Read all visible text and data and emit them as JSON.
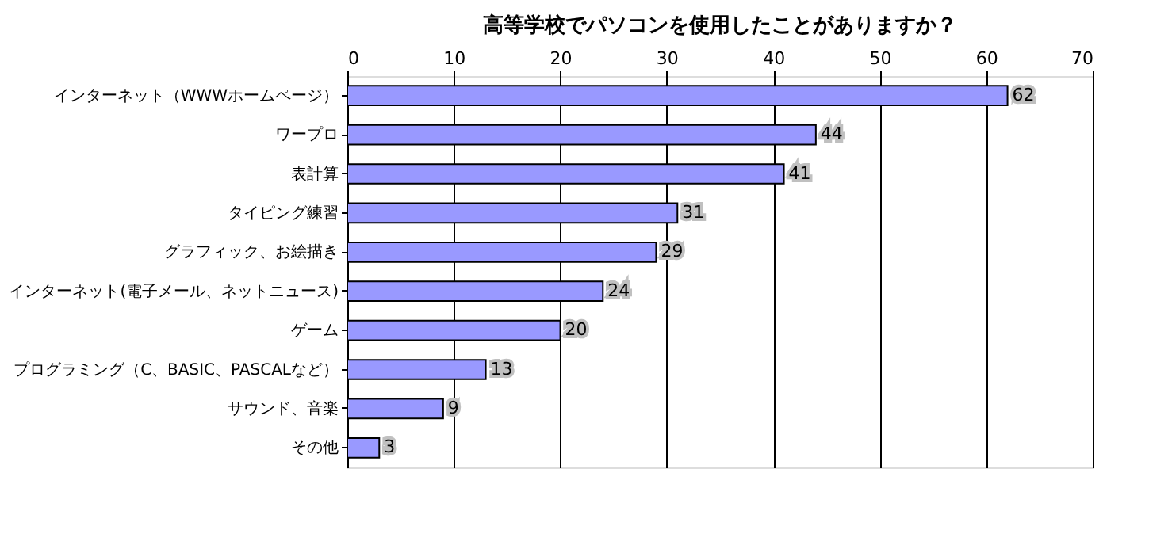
{
  "chart_data": {
    "type": "bar",
    "orientation": "horizontal",
    "title": "高等学校でパソコンを使用したことがありますか？",
    "categories": [
      "インターネット（WWWホームページ）",
      "ワープロ",
      "表計算",
      "タイピング練習",
      "グラフィック、お絵描き",
      "インターネット(電子メール、ネットニュース)",
      "ゲーム",
      "プログラミング（C、BASIC、PASCALなど）",
      "サウンド、音楽",
      "その他"
    ],
    "values": [
      62,
      44,
      41,
      31,
      29,
      24,
      20,
      13,
      9,
      3
    ],
    "color": "#9999ff",
    "xlim": [
      0,
      70
    ],
    "xticks": [
      0,
      10,
      20,
      30,
      40,
      50,
      60,
      70
    ],
    "grid": "x",
    "data_labels": true,
    "legend": false
  }
}
